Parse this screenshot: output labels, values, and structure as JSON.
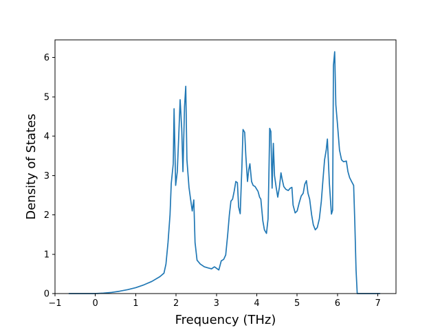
{
  "chart_data": {
    "type": "line",
    "title": "",
    "xlabel": "Frequency (THz)",
    "ylabel": "Density of States",
    "xlim": [
      -1,
      7.45
    ],
    "ylim": [
      0,
      6.45
    ],
    "xticks": [
      -1,
      0,
      1,
      2,
      3,
      4,
      5,
      6,
      7
    ],
    "xtick_labels": [
      "−1",
      "0",
      "1",
      "2",
      "3",
      "4",
      "5",
      "6",
      "7"
    ],
    "yticks": [
      0,
      1,
      2,
      3,
      4,
      5,
      6
    ],
    "ytick_labels": [
      "0",
      "1",
      "2",
      "3",
      "4",
      "5",
      "6"
    ],
    "grid": false,
    "legend": "none",
    "series": [
      {
        "color": "#1f77b4",
        "points": [
          [
            -0.65,
            0.0
          ],
          [
            0.0,
            0.0
          ],
          [
            0.2,
            0.01
          ],
          [
            0.4,
            0.03
          ],
          [
            0.6,
            0.06
          ],
          [
            0.8,
            0.1
          ],
          [
            1.0,
            0.15
          ],
          [
            1.2,
            0.22
          ],
          [
            1.4,
            0.31
          ],
          [
            1.6,
            0.43
          ],
          [
            1.7,
            0.52
          ],
          [
            1.75,
            0.75
          ],
          [
            1.8,
            1.3
          ],
          [
            1.85,
            2.0
          ],
          [
            1.88,
            2.8
          ],
          [
            1.93,
            3.3
          ],
          [
            1.95,
            4.7
          ],
          [
            1.99,
            2.75
          ],
          [
            2.03,
            3.1
          ],
          [
            2.07,
            4.1
          ],
          [
            2.1,
            4.93
          ],
          [
            2.14,
            4.2
          ],
          [
            2.17,
            3.1
          ],
          [
            2.21,
            4.75
          ],
          [
            2.24,
            5.27
          ],
          [
            2.27,
            3.4
          ],
          [
            2.32,
            2.7
          ],
          [
            2.36,
            2.4
          ],
          [
            2.4,
            2.1
          ],
          [
            2.44,
            2.38
          ],
          [
            2.47,
            1.3
          ],
          [
            2.52,
            0.85
          ],
          [
            2.6,
            0.75
          ],
          [
            2.7,
            0.68
          ],
          [
            2.8,
            0.65
          ],
          [
            2.88,
            0.63
          ],
          [
            2.95,
            0.68
          ],
          [
            3.02,
            0.63
          ],
          [
            3.06,
            0.6
          ],
          [
            3.12,
            0.83
          ],
          [
            3.18,
            0.87
          ],
          [
            3.23,
            0.98
          ],
          [
            3.28,
            1.5
          ],
          [
            3.32,
            2.0
          ],
          [
            3.36,
            2.35
          ],
          [
            3.4,
            2.4
          ],
          [
            3.44,
            2.6
          ],
          [
            3.48,
            2.85
          ],
          [
            3.52,
            2.82
          ],
          [
            3.55,
            2.2
          ],
          [
            3.59,
            2.03
          ],
          [
            3.63,
            3.2
          ],
          [
            3.66,
            4.17
          ],
          [
            3.7,
            4.1
          ],
          [
            3.73,
            3.5
          ],
          [
            3.77,
            2.85
          ],
          [
            3.8,
            3.15
          ],
          [
            3.83,
            3.3
          ],
          [
            3.87,
            2.85
          ],
          [
            3.91,
            2.75
          ],
          [
            3.96,
            2.72
          ],
          [
            4.0,
            2.65
          ],
          [
            4.03,
            2.6
          ],
          [
            4.07,
            2.45
          ],
          [
            4.1,
            2.4
          ],
          [
            4.15,
            1.85
          ],
          [
            4.19,
            1.62
          ],
          [
            4.24,
            1.53
          ],
          [
            4.28,
            1.9
          ],
          [
            4.3,
            3.0
          ],
          [
            4.32,
            4.2
          ],
          [
            4.35,
            4.12
          ],
          [
            4.38,
            2.68
          ],
          [
            4.41,
            3.82
          ],
          [
            4.44,
            3.0
          ],
          [
            4.48,
            2.7
          ],
          [
            4.52,
            2.45
          ],
          [
            4.56,
            2.7
          ],
          [
            4.6,
            3.07
          ],
          [
            4.63,
            2.9
          ],
          [
            4.67,
            2.72
          ],
          [
            4.72,
            2.65
          ],
          [
            4.78,
            2.62
          ],
          [
            4.83,
            2.68
          ],
          [
            4.87,
            2.7
          ],
          [
            4.9,
            2.25
          ],
          [
            4.95,
            2.05
          ],
          [
            5.0,
            2.1
          ],
          [
            5.05,
            2.3
          ],
          [
            5.1,
            2.48
          ],
          [
            5.15,
            2.55
          ],
          [
            5.19,
            2.78
          ],
          [
            5.23,
            2.87
          ],
          [
            5.27,
            2.55
          ],
          [
            5.31,
            2.4
          ],
          [
            5.36,
            2.0
          ],
          [
            5.4,
            1.75
          ],
          [
            5.45,
            1.62
          ],
          [
            5.5,
            1.68
          ],
          [
            5.55,
            1.9
          ],
          [
            5.6,
            2.35
          ],
          [
            5.64,
            2.9
          ],
          [
            5.68,
            3.4
          ],
          [
            5.72,
            3.65
          ],
          [
            5.75,
            3.93
          ],
          [
            5.8,
            2.8
          ],
          [
            5.85,
            2.02
          ],
          [
            5.88,
            2.12
          ],
          [
            5.9,
            5.8
          ],
          [
            5.93,
            6.15
          ],
          [
            5.96,
            4.8
          ],
          [
            6.0,
            4.3
          ],
          [
            6.05,
            3.65
          ],
          [
            6.1,
            3.4
          ],
          [
            6.15,
            3.35
          ],
          [
            6.22,
            3.37
          ],
          [
            6.26,
            3.1
          ],
          [
            6.3,
            2.95
          ],
          [
            6.35,
            2.85
          ],
          [
            6.4,
            2.75
          ],
          [
            6.43,
            1.8
          ],
          [
            6.46,
            0.6
          ],
          [
            6.49,
            0.0
          ],
          [
            7.05,
            0.0
          ]
        ]
      }
    ]
  }
}
